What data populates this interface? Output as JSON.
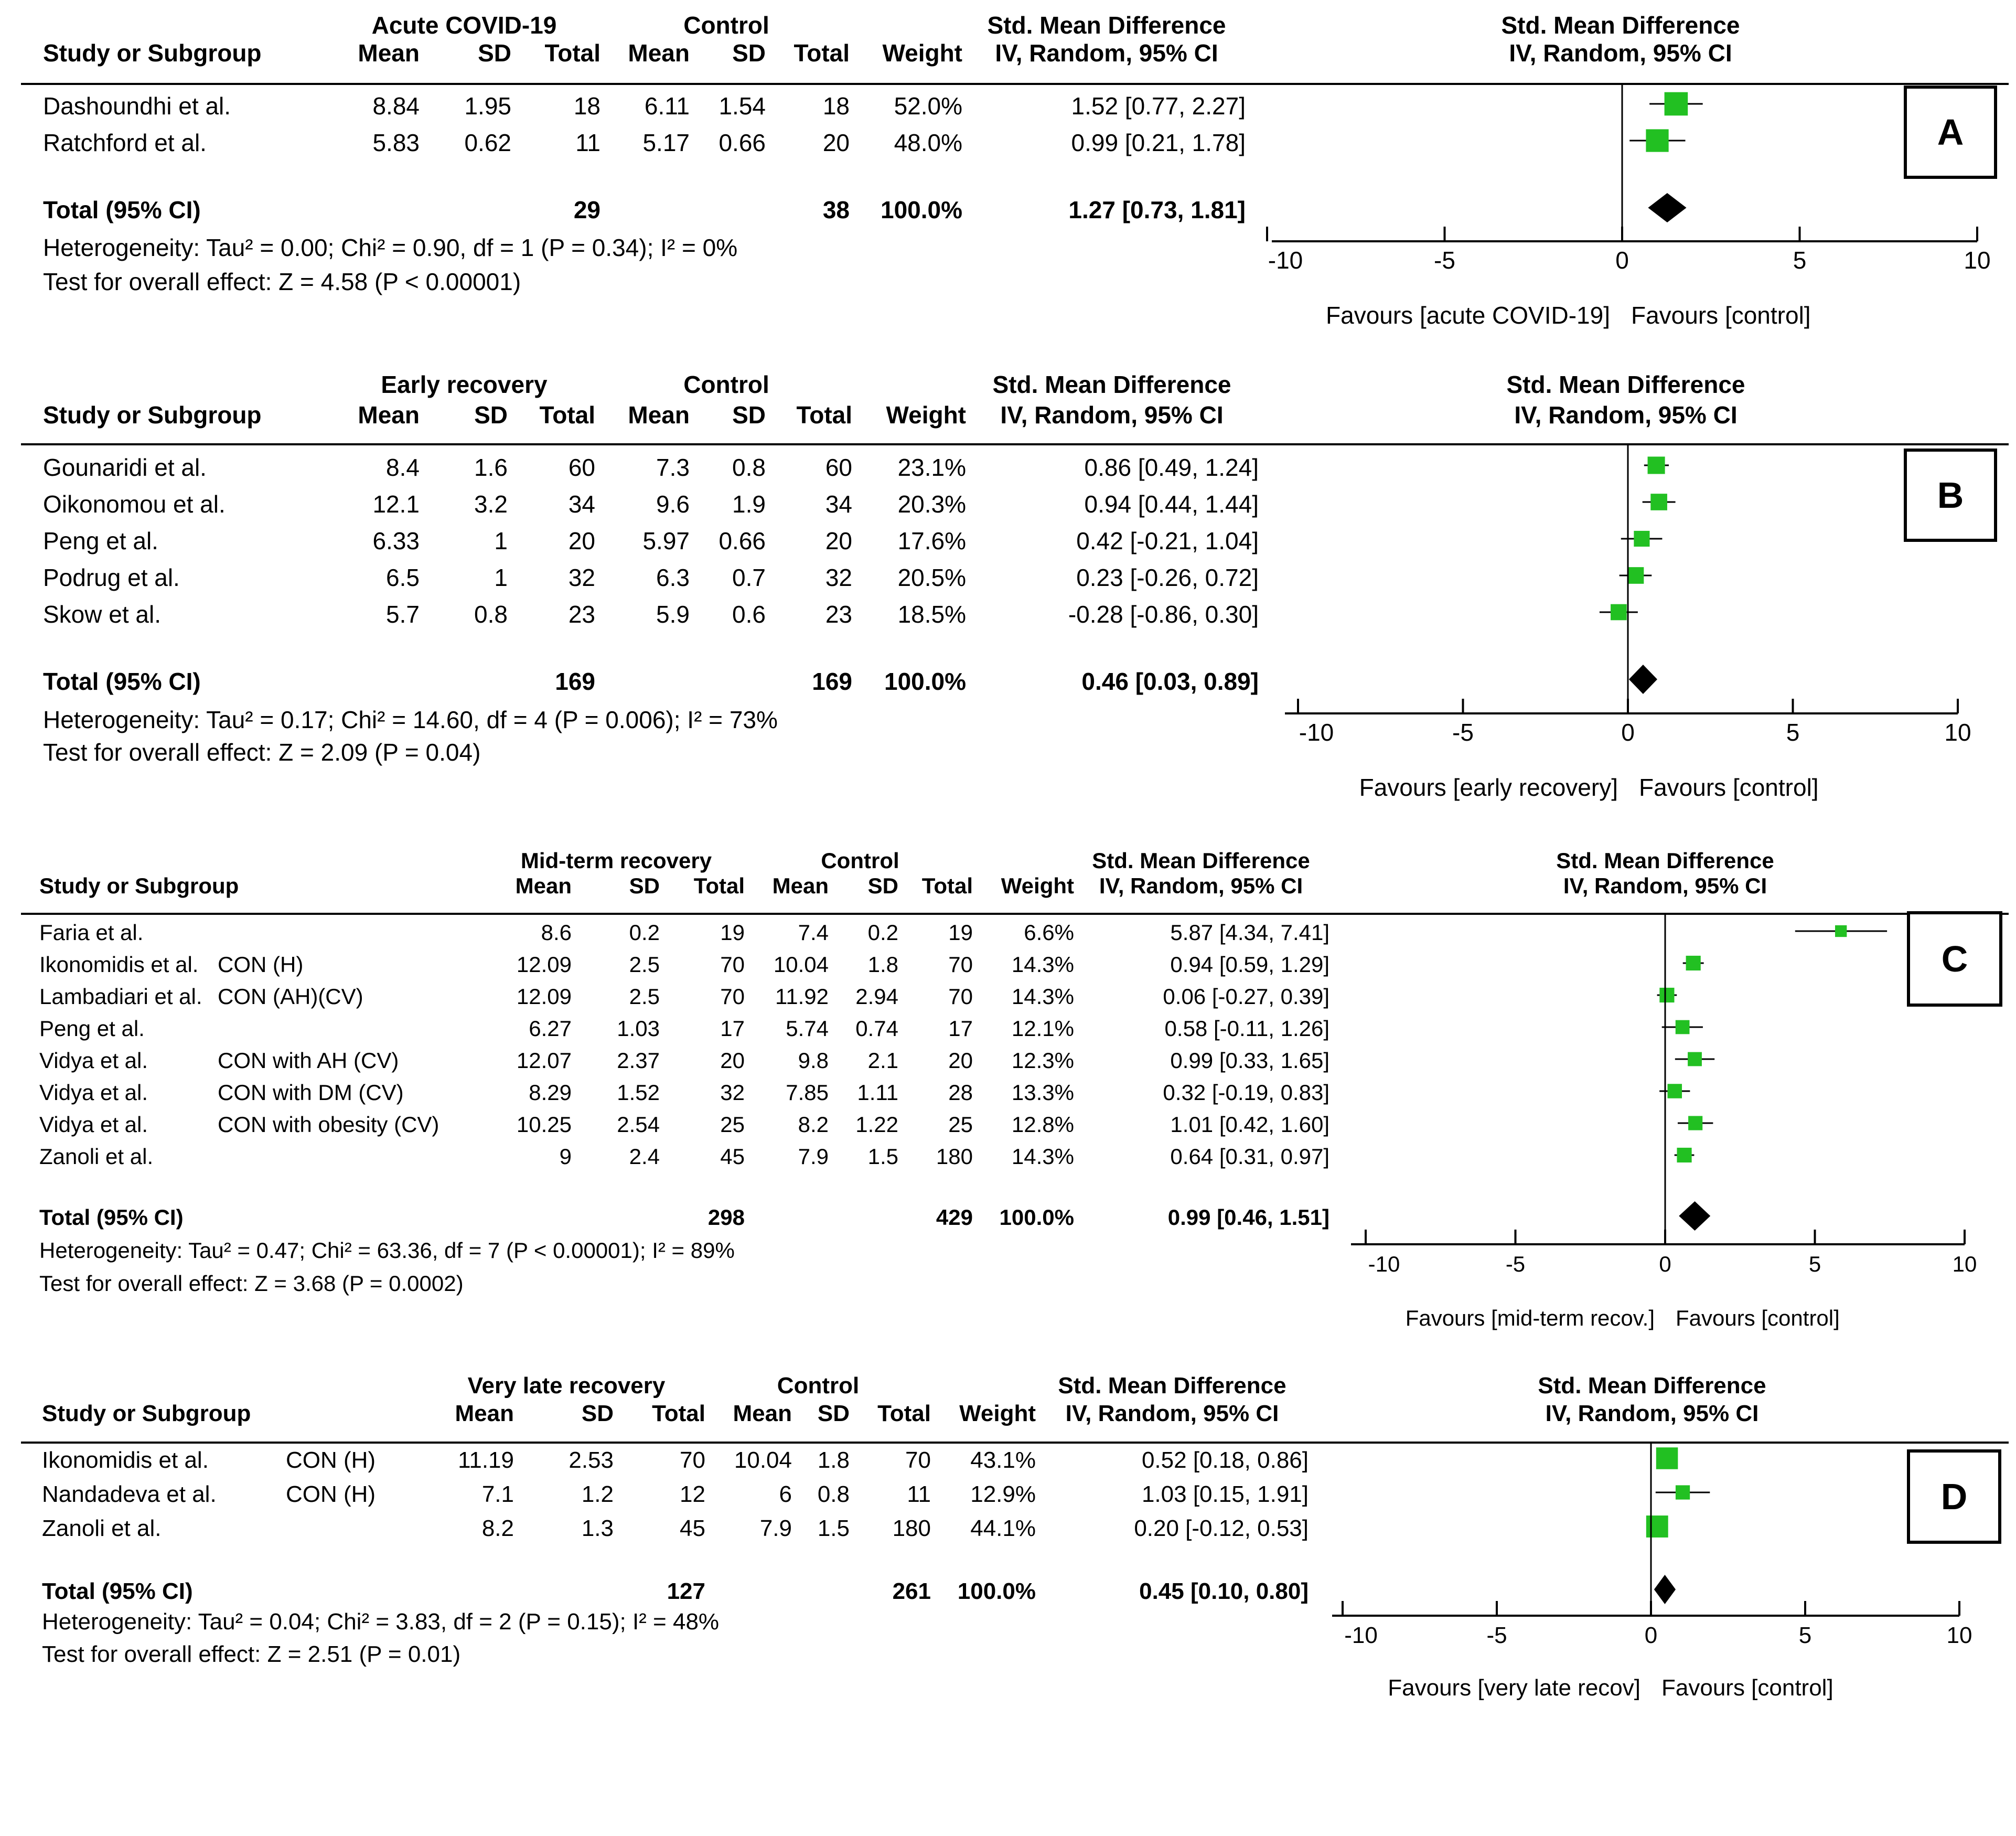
{
  "chart_data": [
    {
      "type": "forest",
      "panel_label": "A",
      "header": {
        "group1": "Acute COVID-19",
        "group2": "Control",
        "effect": "Std. Mean Difference",
        "study_col": "Study or Subgroup",
        "mean": "Mean",
        "sd": "SD",
        "total": "Total",
        "weight": "Weight",
        "method": "IV, Random, 95% CI"
      },
      "studies": [
        {
          "name": "Dashoundhi et al.",
          "sub": "",
          "m1": "8.84",
          "sd1": "1.95",
          "n1": "18",
          "m2": "6.11",
          "sd2": "1.54",
          "n2": "18",
          "weight": "52.0%",
          "ci_text": "1.52 [0.77, 2.27]",
          "est": 1.52,
          "lo": 0.77,
          "hi": 2.27,
          "w": 52.0
        },
        {
          "name": "Ratchford et al.",
          "sub": "",
          "m1": "5.83",
          "sd1": "0.62",
          "n1": "11",
          "m2": "5.17",
          "sd2": "0.66",
          "n2": "20",
          "weight": "48.0%",
          "ci_text": "0.99 [0.21, 1.78]",
          "est": 0.99,
          "lo": 0.21,
          "hi": 1.78,
          "w": 48.0
        }
      ],
      "total": {
        "label": "Total (95% CI)",
        "n1": "29",
        "n2": "38",
        "weight": "100.0%",
        "ci_text": "1.27 [0.73, 1.81]",
        "est": 1.27,
        "lo": 0.73,
        "hi": 1.81
      },
      "heterogeneity": "Heterogeneity: Tau² = 0.00; Chi² = 0.90, df = 1 (P = 0.34); I² = 0%",
      "overall": "Test for overall effect: Z = 4.58 (P < 0.00001)",
      "axis": {
        "ticks": [
          -10,
          -5,
          0,
          5,
          10
        ],
        "tick_labels": [
          "-10",
          "-5",
          "0",
          "5",
          "10"
        ],
        "xlim": [
          -10,
          10
        ],
        "fav_left": "Favours [acute COVID-19]",
        "fav_right": "Favours [control]"
      }
    },
    {
      "type": "forest",
      "panel_label": "B",
      "header": {
        "group1": "Early recovery",
        "group2": "Control",
        "effect": "Std. Mean Difference",
        "study_col": "Study or Subgroup",
        "mean": "Mean",
        "sd": "SD",
        "total": "Total",
        "weight": "Weight",
        "method": "IV, Random, 95% CI"
      },
      "studies": [
        {
          "name": "Gounaridi et al.",
          "sub": "",
          "m1": "8.4",
          "sd1": "1.6",
          "n1": "60",
          "m2": "7.3",
          "sd2": "0.8",
          "n2": "60",
          "weight": "23.1%",
          "ci_text": "0.86 [0.49, 1.24]",
          "est": 0.86,
          "lo": 0.49,
          "hi": 1.24,
          "w": 23.1
        },
        {
          "name": "Oikonomou et al.",
          "sub": "",
          "m1": "12.1",
          "sd1": "3.2",
          "n1": "34",
          "m2": "9.6",
          "sd2": "1.9",
          "n2": "34",
          "weight": "20.3%",
          "ci_text": "0.94 [0.44, 1.44]",
          "est": 0.94,
          "lo": 0.44,
          "hi": 1.44,
          "w": 20.3
        },
        {
          "name": "Peng et al.",
          "sub": "",
          "m1": "6.33",
          "sd1": "1",
          "n1": "20",
          "m2": "5.97",
          "sd2": "0.66",
          "n2": "20",
          "weight": "17.6%",
          "ci_text": "0.42 [-0.21, 1.04]",
          "est": 0.42,
          "lo": -0.21,
          "hi": 1.04,
          "w": 17.6
        },
        {
          "name": "Podrug et al.",
          "sub": "",
          "m1": "6.5",
          "sd1": "1",
          "n1": "32",
          "m2": "6.3",
          "sd2": "0.7",
          "n2": "32",
          "weight": "20.5%",
          "ci_text": "0.23 [-0.26, 0.72]",
          "est": 0.23,
          "lo": -0.26,
          "hi": 0.72,
          "w": 20.5
        },
        {
          "name": "Skow et al.",
          "sub": "",
          "m1": "5.7",
          "sd1": "0.8",
          "n1": "23",
          "m2": "5.9",
          "sd2": "0.6",
          "n2": "23",
          "weight": "18.5%",
          "ci_text": "-0.28 [-0.86, 0.30]",
          "est": -0.28,
          "lo": -0.86,
          "hi": 0.3,
          "w": 18.5
        }
      ],
      "total": {
        "label": "Total (95% CI)",
        "n1": "169",
        "n2": "169",
        "weight": "100.0%",
        "ci_text": "0.46 [0.03, 0.89]",
        "est": 0.46,
        "lo": 0.03,
        "hi": 0.89
      },
      "heterogeneity": "Heterogeneity: Tau² = 0.17; Chi² = 14.60, df = 4 (P = 0.006); I² = 73%",
      "overall": "Test for overall effect: Z = 2.09 (P = 0.04)",
      "axis": {
        "ticks": [
          -10,
          -5,
          0,
          5,
          10
        ],
        "tick_labels": [
          "-10",
          "-5",
          "0",
          "5",
          "10"
        ],
        "xlim": [
          -10,
          10
        ],
        "fav_left": "Favours [early recovery]",
        "fav_right": "Favours [control]"
      }
    },
    {
      "type": "forest",
      "panel_label": "C",
      "header": {
        "group1": "Mid-term recovery",
        "group2": "Control",
        "effect": "Std. Mean Difference",
        "study_col": "Study or Subgroup",
        "mean": "Mean",
        "sd": "SD",
        "total": "Total",
        "weight": "Weight",
        "method": "IV, Random, 95% CI"
      },
      "studies": [
        {
          "name": "Faria et al.",
          "sub": "",
          "m1": "8.6",
          "sd1": "0.2",
          "n1": "19",
          "m2": "7.4",
          "sd2": "0.2",
          "n2": "19",
          "weight": "6.6%",
          "ci_text": "5.87 [4.34, 7.41]",
          "est": 5.87,
          "lo": 4.34,
          "hi": 7.41,
          "w": 6.6
        },
        {
          "name": "Ikonomidis et al.",
          "sub": "CON (H)",
          "m1": "12.09",
          "sd1": "2.5",
          "n1": "70",
          "m2": "10.04",
          "sd2": "1.8",
          "n2": "70",
          "weight": "14.3%",
          "ci_text": "0.94 [0.59, 1.29]",
          "est": 0.94,
          "lo": 0.59,
          "hi": 1.29,
          "w": 14.3
        },
        {
          "name": "Lambadiari et al.",
          "sub": "CON (AH)(CV)",
          "m1": "12.09",
          "sd1": "2.5",
          "n1": "70",
          "m2": "11.92",
          "sd2": "2.94",
          "n2": "70",
          "weight": "14.3%",
          "ci_text": "0.06 [-0.27, 0.39]",
          "est": 0.06,
          "lo": -0.27,
          "hi": 0.39,
          "w": 14.3
        },
        {
          "name": "Peng et al.",
          "sub": "",
          "m1": "6.27",
          "sd1": "1.03",
          "n1": "17",
          "m2": "5.74",
          "sd2": "0.74",
          "n2": "17",
          "weight": "12.1%",
          "ci_text": "0.58 [-0.11, 1.26]",
          "est": 0.58,
          "lo": -0.11,
          "hi": 1.26,
          "w": 12.1
        },
        {
          "name": "Vidya et al.",
          "sub": "CON with AH (CV)",
          "m1": "12.07",
          "sd1": "2.37",
          "n1": "20",
          "m2": "9.8",
          "sd2": "2.1",
          "n2": "20",
          "weight": "12.3%",
          "ci_text": "0.99 [0.33, 1.65]",
          "est": 0.99,
          "lo": 0.33,
          "hi": 1.65,
          "w": 12.3
        },
        {
          "name": "Vidya et al.",
          "sub": "CON with DM (CV)",
          "m1": "8.29",
          "sd1": "1.52",
          "n1": "32",
          "m2": "7.85",
          "sd2": "1.11",
          "n2": "28",
          "weight": "13.3%",
          "ci_text": "0.32 [-0.19, 0.83]",
          "est": 0.32,
          "lo": -0.19,
          "hi": 0.83,
          "w": 13.3
        },
        {
          "name": "Vidya et al.",
          "sub": "CON with obesity (CV)",
          "m1": "10.25",
          "sd1": "2.54",
          "n1": "25",
          "m2": "8.2",
          "sd2": "1.22",
          "n2": "25",
          "weight": "12.8%",
          "ci_text": "1.01 [0.42, 1.60]",
          "est": 1.01,
          "lo": 0.42,
          "hi": 1.6,
          "w": 12.8
        },
        {
          "name": "Zanoli et al.",
          "sub": "",
          "m1": "9",
          "sd1": "2.4",
          "n1": "45",
          "m2": "7.9",
          "sd2": "1.5",
          "n2": "180",
          "weight": "14.3%",
          "ci_text": "0.64 [0.31, 0.97]",
          "est": 0.64,
          "lo": 0.31,
          "hi": 0.97,
          "w": 14.3
        }
      ],
      "total": {
        "label": "Total (95% CI)",
        "n1": "298",
        "n2": "429",
        "weight": "100.0%",
        "ci_text": "0.99 [0.46, 1.51]",
        "est": 0.99,
        "lo": 0.46,
        "hi": 1.51
      },
      "heterogeneity": "Heterogeneity: Tau² = 0.47; Chi² = 63.36, df = 7 (P < 0.00001); I² = 89%",
      "overall": "Test for overall effect: Z = 3.68 (P = 0.0002)",
      "axis": {
        "ticks": [
          -10,
          -5,
          0,
          5,
          10
        ],
        "tick_labels": [
          "-10",
          "-5",
          "0",
          "5",
          "10"
        ],
        "xlim": [
          -10,
          10
        ],
        "fav_left": "Favours [mid-term recov.]",
        "fav_right": "Favours [control]"
      }
    },
    {
      "type": "forest",
      "panel_label": "D",
      "header": {
        "group1": "Very late recovery",
        "group2": "Control",
        "effect": "Std. Mean Difference",
        "study_col": "Study or Subgroup",
        "mean": "Mean",
        "sd": "SD",
        "total": "Total",
        "weight": "Weight",
        "method": "IV, Random, 95% CI"
      },
      "studies": [
        {
          "name": "Ikonomidis et al.",
          "sub": "CON (H)",
          "m1": "11.19",
          "sd1": "2.53",
          "n1": "70",
          "m2": "10.04",
          "sd2": "1.8",
          "n2": "70",
          "weight": "43.1%",
          "ci_text": "0.52 [0.18, 0.86]",
          "est": 0.52,
          "lo": 0.18,
          "hi": 0.86,
          "w": 43.1
        },
        {
          "name": "Nandadeva et al.",
          "sub": "CON (H)",
          "m1": "7.1",
          "sd1": "1.2",
          "n1": "12",
          "m2": "6",
          "sd2": "0.8",
          "n2": "11",
          "weight": "12.9%",
          "ci_text": "1.03 [0.15, 1.91]",
          "est": 1.03,
          "lo": 0.15,
          "hi": 1.91,
          "w": 12.9
        },
        {
          "name": "Zanoli et al.",
          "sub": "",
          "m1": "8.2",
          "sd1": "1.3",
          "n1": "45",
          "m2": "7.9",
          "sd2": "1.5",
          "n2": "180",
          "weight": "44.1%",
          "ci_text": "0.20 [-0.12, 0.53]",
          "est": 0.2,
          "lo": -0.12,
          "hi": 0.53,
          "w": 44.1
        }
      ],
      "total": {
        "label": "Total (95% CI)",
        "n1": "127",
        "n2": "261",
        "weight": "100.0%",
        "ci_text": "0.45 [0.10, 0.80]",
        "est": 0.45,
        "lo": 0.1,
        "hi": 0.8
      },
      "heterogeneity": "Heterogeneity: Tau² = 0.04; Chi² = 3.83, df = 2 (P = 0.15); I² = 48%",
      "overall": "Test for overall effect: Z = 2.51 (P = 0.01)",
      "axis": {
        "ticks": [
          -10,
          -5,
          0,
          5,
          10
        ],
        "tick_labels": [
          "-10",
          "-5",
          "0",
          "5",
          "10"
        ],
        "xlim": [
          -10,
          10
        ],
        "fav_left": "Favours [very late recov]",
        "fav_right": "Favours [control]"
      }
    }
  ],
  "colors": {
    "square": "#22c022",
    "diamond": "#000000",
    "line": "#000000"
  }
}
